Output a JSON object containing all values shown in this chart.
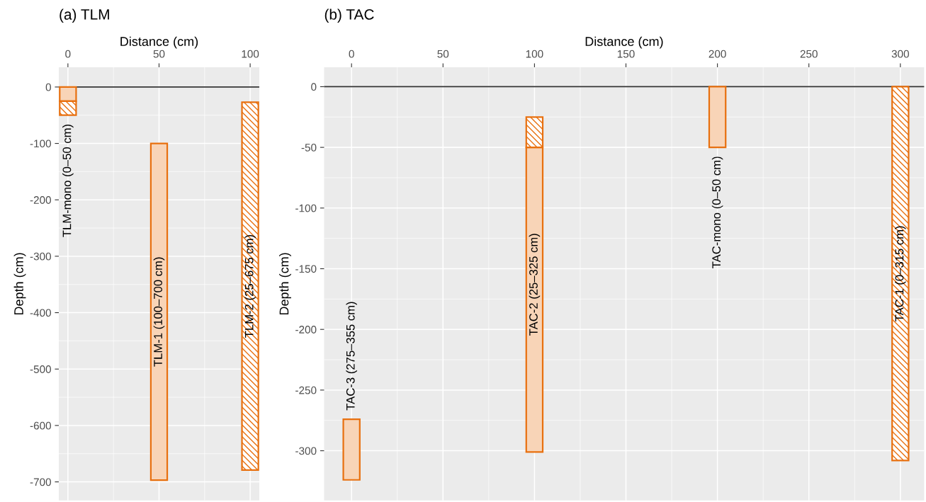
{
  "chart_data": [
    {
      "type": "bar",
      "title": "(a) TLM",
      "xlabel": "Distance (cm)",
      "ylabel": "Depth (cm)",
      "series": [
        {
          "color": "#e8700f",
          "x": [
            0,
            50
          ],
          "base": [
            0,
            -100
          ],
          "values": [
            -25,
            -597
          ]
        },
        {
          "color": "#e8700f",
          "x": [
            0,
            100
          ],
          "base": [
            -25,
            -27
          ],
          "values": [
            -25,
            -652
          ]
        }
      ],
      "xlim": [
        -5,
        105
      ],
      "xticks": [
        0,
        50,
        100
      ],
      "ylim": [
        -733,
        35
      ],
      "yticks": [
        -700,
        -600,
        -500,
        -400,
        -300,
        -200,
        -100,
        0
      ],
      "grid": true,
      "ref_lines": [
        {
          "axis": "y",
          "value": 0,
          "color": "#333333"
        }
      ],
      "annotations": [
        "TLM-mono (0–50 cm)",
        "TLM-1 (100–700 cm)",
        "TLM-2 (25–675 cm)"
      ]
    },
    {
      "type": "bar",
      "title": "(b) TAC",
      "xlabel": "Distance (cm)",
      "ylabel": "Depth (cm)",
      "series": [
        {
          "color": "#e8700f",
          "x": [
            0,
            100,
            200
          ],
          "base": [
            -274,
            -50,
            0
          ],
          "values": [
            -50,
            -251,
            -50
          ]
        },
        {
          "color": "#e8700f",
          "x": [
            100,
            300
          ],
          "base": [
            -25,
            0
          ],
          "values": [
            -25,
            -308
          ]
        }
      ],
      "xlim": [
        -15,
        313
      ],
      "xticks": [
        0,
        50,
        100,
        150,
        200,
        250,
        300
      ],
      "ylim": [
        -341,
        16
      ],
      "yticks": [
        -300,
        -250,
        -200,
        -150,
        -100,
        -50,
        0
      ],
      "grid": true,
      "ref_lines": [
        {
          "axis": "y",
          "value": 0,
          "color": "#333333"
        }
      ],
      "annotations": [
        "TAC-3 (275–355 cm)",
        "TAC-2 (25–325 cm)",
        "TAC-mono (0–50 cm)",
        "TAC-1 (0–315 cm)"
      ]
    }
  ]
}
